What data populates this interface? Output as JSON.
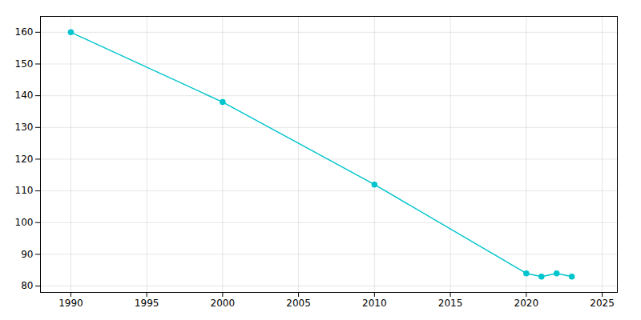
{
  "chart_data": {
    "type": "line",
    "x": [
      1990,
      2000,
      2010,
      2020,
      2021,
      2022,
      2023
    ],
    "values": [
      160,
      138,
      112,
      84,
      83,
      84,
      83
    ],
    "color": "#00C5CD",
    "marker": "circle",
    "xlim": [
      1988,
      2026
    ],
    "ylim": [
      78,
      165
    ],
    "xticks": [
      1990,
      1995,
      2000,
      2005,
      2010,
      2015,
      2020,
      2025
    ],
    "yticks": [
      80,
      90,
      100,
      110,
      120,
      130,
      140,
      150,
      160
    ],
    "grid": true
  }
}
